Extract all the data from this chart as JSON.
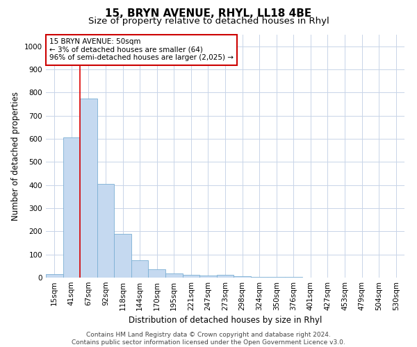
{
  "title": "15, BRYN AVENUE, RHYL, LL18 4BE",
  "subtitle": "Size of property relative to detached houses in Rhyl",
  "xlabel": "Distribution of detached houses by size in Rhyl",
  "ylabel": "Number of detached properties",
  "footer_line1": "Contains HM Land Registry data © Crown copyright and database right 2024.",
  "footer_line2": "Contains public sector information licensed under the Open Government Licence v3.0.",
  "categories": [
    "15sqm",
    "41sqm",
    "67sqm",
    "92sqm",
    "118sqm",
    "144sqm",
    "170sqm",
    "195sqm",
    "221sqm",
    "247sqm",
    "273sqm",
    "298sqm",
    "324sqm",
    "350sqm",
    "376sqm",
    "401sqm",
    "427sqm",
    "453sqm",
    "479sqm",
    "504sqm",
    "530sqm"
  ],
  "values": [
    15,
    605,
    775,
    405,
    190,
    75,
    37,
    17,
    12,
    10,
    12,
    7,
    4,
    3,
    2,
    1,
    1,
    0,
    0,
    0,
    0
  ],
  "bar_color": "#c5d9f0",
  "bar_edge_color": "#7bafd4",
  "grid_color": "#c8d4e8",
  "background_color": "#ffffff",
  "red_line_x": 1.5,
  "ann_line1": "15 BRYN AVENUE: 50sqm",
  "ann_line2": "← 3% of detached houses are smaller (64)",
  "ann_line3": "96% of semi-detached houses are larger (2,025) →",
  "annotation_box_color": "#ffffff",
  "annotation_box_edge": "#cc0000",
  "ylim": [
    0,
    1050
  ],
  "yticks": [
    0,
    100,
    200,
    300,
    400,
    500,
    600,
    700,
    800,
    900,
    1000
  ],
  "title_fontsize": 11,
  "subtitle_fontsize": 9.5,
  "ylabel_fontsize": 8.5,
  "xlabel_fontsize": 8.5,
  "tick_fontsize": 7.5,
  "ann_fontsize": 7.5,
  "footer_fontsize": 6.5
}
